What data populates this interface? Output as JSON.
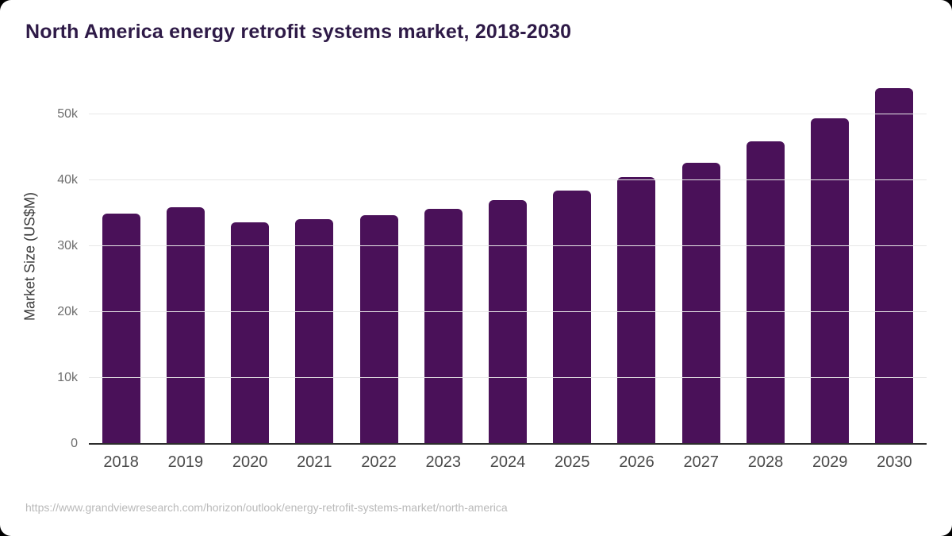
{
  "page": {
    "background_color": "#000000",
    "card_color": "#ffffff"
  },
  "header": {
    "title": "North America energy retrofit systems market, 2018-2030",
    "title_color": "#2e1a47"
  },
  "footer": {
    "source_url": "https://www.grandviewresearch.com/horizon/outlook/energy-retrofit-systems-market/north-america"
  },
  "chart_data": {
    "type": "bar",
    "title": "North America energy retrofit systems market, 2018-2030",
    "categories": [
      "2018",
      "2019",
      "2020",
      "2021",
      "2022",
      "2023",
      "2024",
      "2025",
      "2026",
      "2027",
      "2028",
      "2029",
      "2030"
    ],
    "values": [
      35000,
      35900,
      33600,
      34100,
      34700,
      35700,
      37000,
      38500,
      40500,
      42700,
      45900,
      49500,
      54000
    ],
    "unit": "US$M",
    "xlabel": "",
    "ylabel": "Market Size (US$M)",
    "ylim": [
      0,
      55000
    ],
    "yticks": [
      {
        "value": 0,
        "label": "0"
      },
      {
        "value": 10000,
        "label": "10k"
      },
      {
        "value": 20000,
        "label": "20k"
      },
      {
        "value": 30000,
        "label": "30k"
      },
      {
        "value": 40000,
        "label": "40k"
      },
      {
        "value": 50000,
        "label": "50k"
      }
    ],
    "grid": true,
    "legend": false,
    "bar_color": "#4a1159",
    "gridline_color": "#e7e7e7",
    "baseline_color": "#2d2d2d"
  }
}
